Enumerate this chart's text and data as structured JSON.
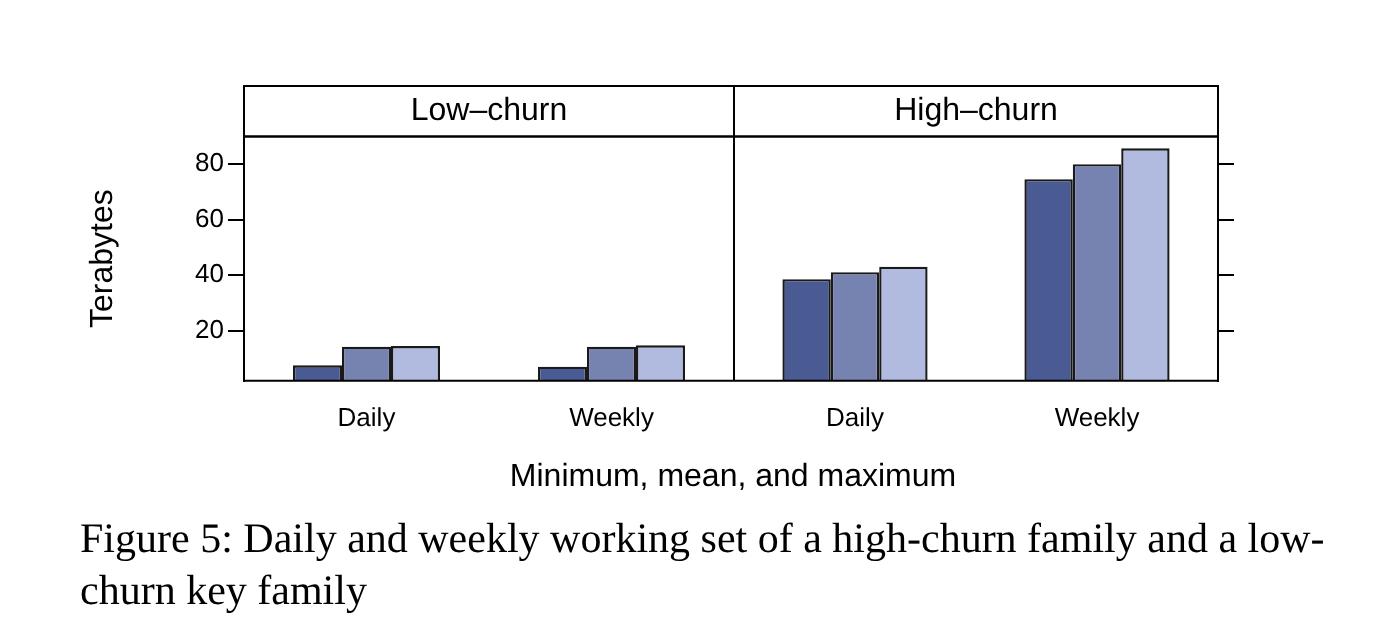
{
  "chart_data": [
    {
      "type": "bar",
      "title": "Low‒churn",
      "ylabel": "Terabytes",
      "xlabel": "Minimum, mean, and maximum",
      "annotations": [
        "Figure 5: Daily and weekly working set of a high-churn family and a low-churn key family"
      ],
      "categories": [
        "Daily",
        "Weekly"
      ],
      "series": [
        {
          "color": "#4a5a92",
          "values": [
            7.6,
            7.1
          ]
        },
        {
          "color": "#7683b0",
          "values": [
            14.3,
            14.3
          ]
        },
        {
          "color": "#b1bbe0",
          "values": [
            14.5,
            14.8
          ]
        }
      ],
      "ylim": [
        2,
        90
      ],
      "yticks": [
        20,
        40,
        60,
        80
      ],
      "grid": false,
      "legend": false
    },
    {
      "type": "bar",
      "title": "High‒churn",
      "categories": [
        "Daily",
        "Weekly"
      ],
      "series": [
        {
          "color": "#4a5a92",
          "values": [
            38.6,
            74.6
          ]
        },
        {
          "color": "#7683b0",
          "values": [
            41.1,
            80
          ]
        },
        {
          "color": "#b1bbe0",
          "values": [
            43.1,
            85.7
          ]
        }
      ],
      "ylim": [
        2,
        90
      ],
      "yticks": [
        20,
        40,
        60,
        80
      ],
      "grid": false,
      "legend": false,
      "tick_labels": "x"
    }
  ]
}
